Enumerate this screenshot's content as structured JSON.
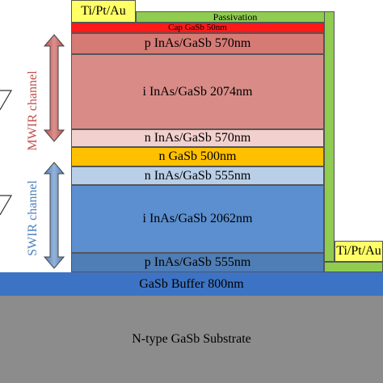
{
  "contacts": {
    "top_label": "Ti/Pt/Au",
    "bottom_label": "Ti/Pt/Au",
    "color": "#ffff66"
  },
  "passivation": {
    "label": "Passivation",
    "color": "#8fcc4f"
  },
  "layers": [
    {
      "label": "Cap GaSb  50nm",
      "color": "#ff1a1a"
    },
    {
      "label": "p  InAs/GaSb  570nm",
      "color": "#d57a74"
    },
    {
      "label": "i  InAs/GaSb  2074nm",
      "color": "#d98c87"
    },
    {
      "label": "n  InAs/GaSb  570nm",
      "color": "#f2d0cd"
    },
    {
      "label": "n  GaSb  500nm",
      "color": "#ffc000"
    },
    {
      "label": "n  InAs/GaSb  555nm",
      "color": "#b9cfe8"
    },
    {
      "label": "i  InAs/GaSb  2062nm",
      "color": "#5b8fd0"
    },
    {
      "label": "p  InAs/GaSb  555nm",
      "color": "#4f7db5"
    }
  ],
  "buffer": {
    "label": "GaSb Buffer 800nm",
    "color": "#3d73c4"
  },
  "substrate": {
    "label": "N-type GaSb Substrate",
    "color": "#8c8c8c"
  },
  "channels": {
    "mwir": {
      "label": "MWIR channel",
      "color": "#c0504d"
    },
    "swir": {
      "label": "SWIR channel",
      "color": "#4f81bd"
    }
  }
}
